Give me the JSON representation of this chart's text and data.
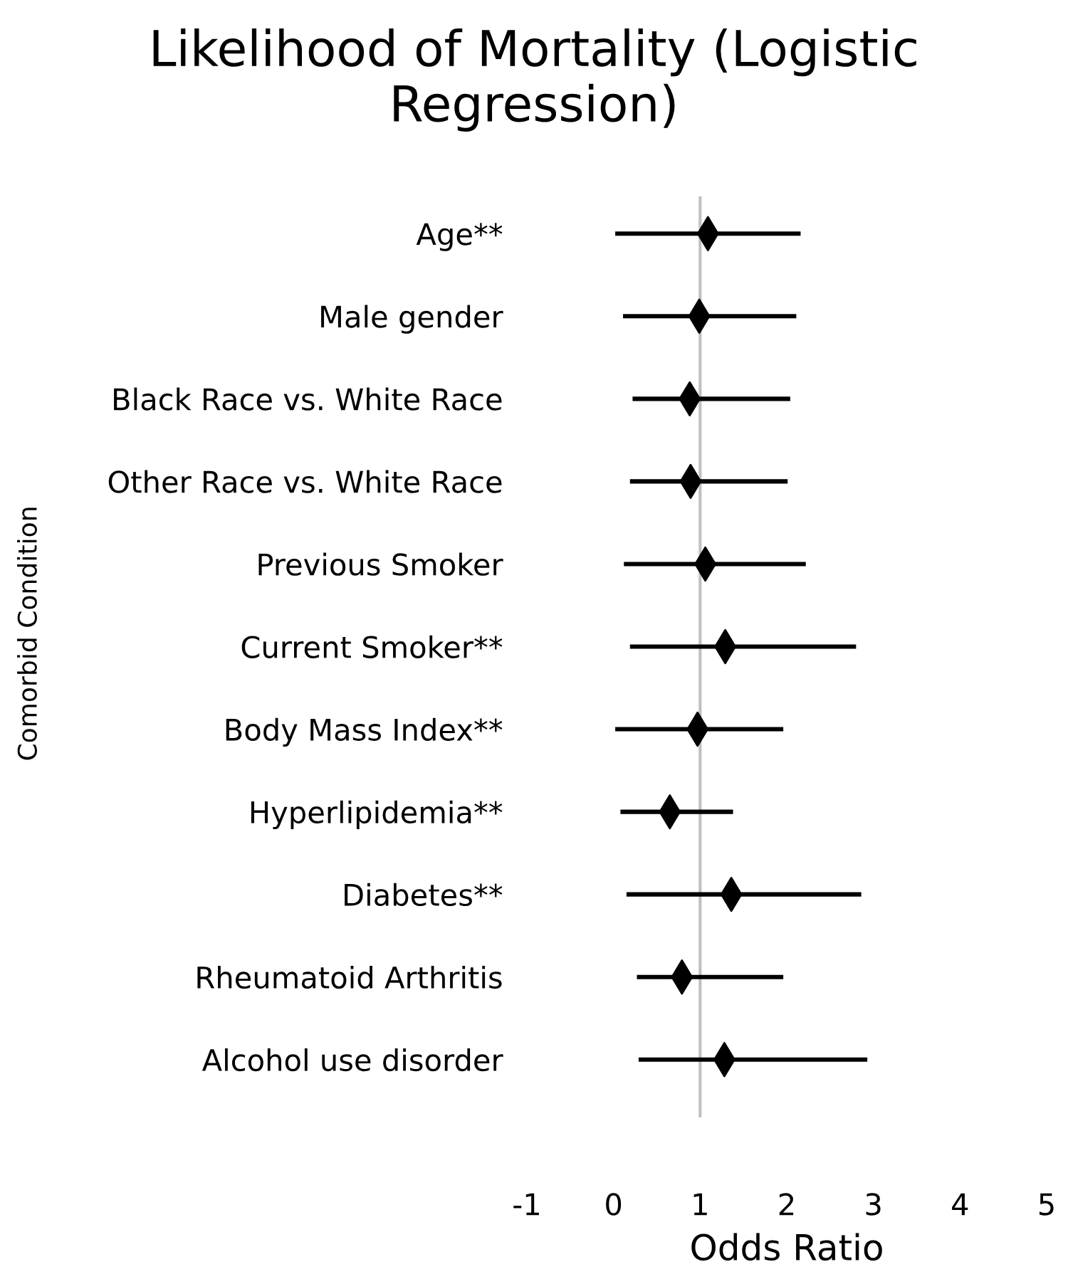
{
  "chart_data": {
    "type": "scatter",
    "orientation": "horizontal",
    "title": "Likelihood of Mortality (Logistic Regression)",
    "xlabel": "Odds Ratio",
    "ylabel": "Comorbid Condition",
    "categories": [
      "Age**",
      "Male gender",
      "Black Race vs. White Race",
      "Other Race vs. White Race",
      "Previous Smoker",
      "Current Smoker**",
      "Body Mass Index**",
      "Hyperlipidemia**",
      "Diabetes**",
      "Rheumatoid Arthritis",
      "Alcohol use disorder"
    ],
    "series": [
      {
        "color": "#000000",
        "values": [
          1.09,
          0.99,
          0.88,
          0.89,
          1.06,
          1.29,
          0.97,
          0.65,
          1.36,
          0.79,
          1.28
        ],
        "errors": [
          [
            0.02,
            2.16
          ],
          [
            0.11,
            2.11
          ],
          [
            0.22,
            2.04
          ],
          [
            0.19,
            2.01
          ],
          [
            0.12,
            2.22
          ],
          [
            0.19,
            2.8
          ],
          [
            0.02,
            1.96
          ],
          [
            0.08,
            1.38
          ],
          [
            0.15,
            2.86
          ],
          [
            0.27,
            1.96
          ],
          [
            0.29,
            2.93
          ]
        ]
      }
    ],
    "marker": "diamond",
    "xlim": [
      -1,
      5
    ],
    "xticks": [
      -1,
      0,
      1,
      2,
      3,
      4,
      5
    ],
    "grid": false,
    "legend": false,
    "ref_lines": [
      {
        "axis": "x",
        "value": 1,
        "color": "#c0c0c0"
      }
    ]
  }
}
